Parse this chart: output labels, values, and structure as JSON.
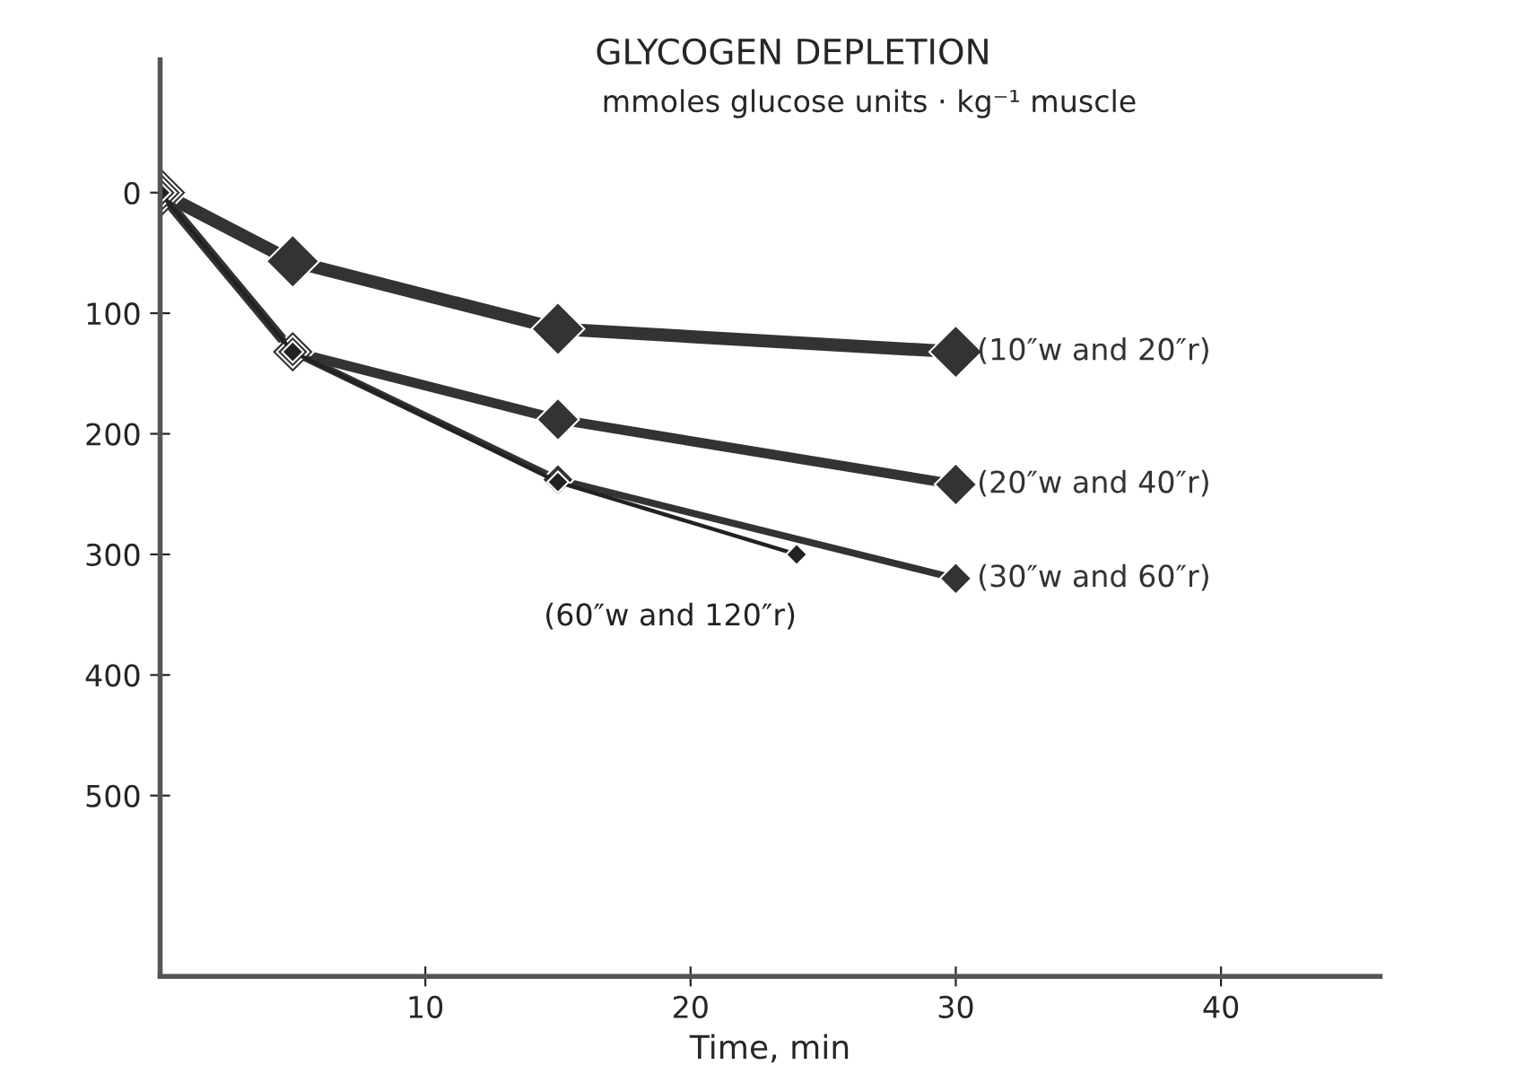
{
  "chart_data": {
    "type": "line",
    "title": "GLYCOGEN DEPLETION",
    "subtitle": "mmoles glucose units · kg⁻¹ muscle",
    "xlabel": "Time, min",
    "xlim": [
      0,
      46
    ],
    "xticks": [
      10,
      20,
      30,
      40
    ],
    "ylim": [
      650,
      -110
    ],
    "yticks": [
      0,
      100,
      200,
      300,
      400,
      500
    ],
    "marker": "diamond",
    "line_style": "solid",
    "grid": false,
    "legend": false,
    "series": [
      {
        "name": "(10″w and 20″r)",
        "color": "#333333",
        "x": [
          0,
          5,
          15,
          30
        ],
        "values": [
          0,
          57,
          113,
          132
        ]
      },
      {
        "name": "(20″w and 40″r)",
        "color": "#333333",
        "x": [
          0,
          5,
          15,
          30
        ],
        "values": [
          0,
          132,
          188,
          242
        ]
      },
      {
        "name": "(30″w and 60″r)",
        "color": "#333333",
        "x": [
          0,
          5,
          15,
          30
        ],
        "values": [
          0,
          132,
          238,
          320
        ]
      },
      {
        "name": "(60″w and 120″r)",
        "color": "#222222",
        "x": [
          0,
          5,
          15,
          24
        ],
        "values": [
          0,
          132,
          240,
          300
        ]
      }
    ]
  }
}
